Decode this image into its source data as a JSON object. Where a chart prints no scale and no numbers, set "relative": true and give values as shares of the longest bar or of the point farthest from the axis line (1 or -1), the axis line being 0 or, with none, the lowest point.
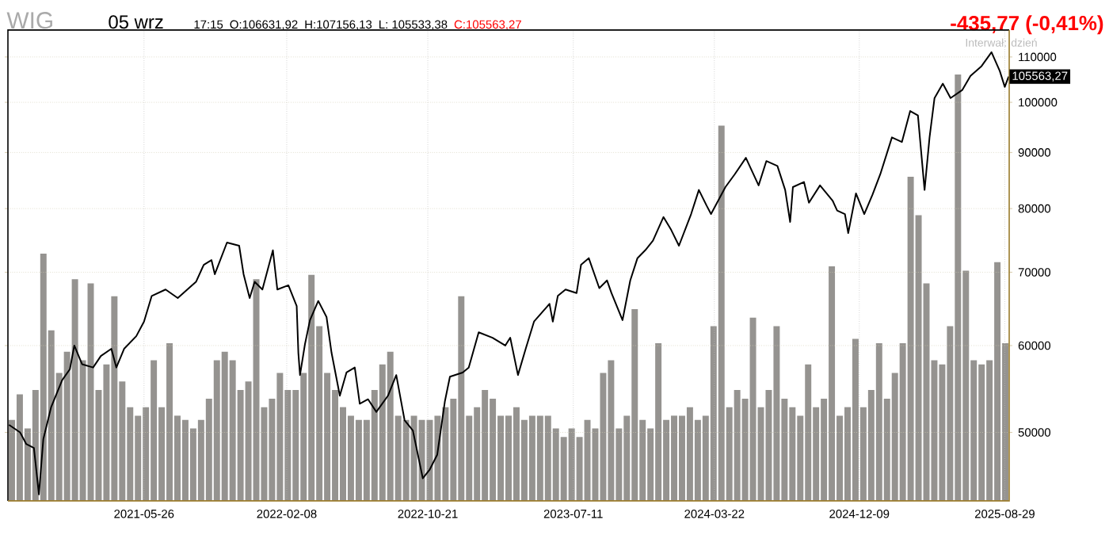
{
  "chart_data": [
    {
      "type": "line",
      "title": "WIG",
      "subtitle": "05 wrz",
      "x": [
        "2020-09-24",
        "2020-10-14",
        "2020-10-25",
        "2020-11-08",
        "2020-11-17",
        "2020-11-25",
        "2020-12-09",
        "2020-12-29",
        "2021-01-12",
        "2021-01-20",
        "2021-02-03",
        "2021-02-23",
        "2021-03-09",
        "2021-03-28",
        "2021-04-06",
        "2021-04-20",
        "2021-05-12",
        "2021-05-26",
        "2021-06-09",
        "2021-07-04",
        "2021-07-26",
        "2021-08-28",
        "2021-09-11",
        "2021-09-25",
        "2021-10-01",
        "2021-10-23",
        "2021-11-14",
        "2021-11-22",
        "2021-12-03",
        "2021-12-12",
        "2021-12-26",
        "2022-01-14",
        "2022-01-22",
        "2022-02-11",
        "2022-02-26",
        "2022-03-01",
        "2022-03-04",
        "2022-03-13",
        "2022-03-22",
        "2022-04-06",
        "2022-04-21",
        "2022-04-30",
        "2022-05-15",
        "2022-05-27",
        "2022-06-11",
        "2022-06-20",
        "2022-07-05",
        "2022-07-20",
        "2022-08-10",
        "2022-08-25",
        "2022-09-09",
        "2022-09-24",
        "2022-10-12",
        "2022-10-24",
        "2022-11-07",
        "2022-11-21",
        "2022-11-30",
        "2022-12-23",
        "2023-01-03",
        "2023-01-21",
        "2023-02-15",
        "2023-03-10",
        "2023-03-19",
        "2023-04-02",
        "2023-04-16",
        "2023-05-01",
        "2023-05-29",
        "2023-06-04",
        "2023-06-13",
        "2023-06-27",
        "2023-07-17",
        "2023-07-25",
        "2023-08-08",
        "2023-08-27",
        "2023-09-10",
        "2023-09-18",
        "2023-10-08",
        "2023-10-22",
        "2023-11-04",
        "2023-11-18",
        "2023-12-02",
        "2023-12-21",
        "2024-01-04",
        "2024-01-18",
        "2024-02-09",
        "2024-02-23",
        "2024-03-08",
        "2024-03-16",
        "2024-04-11",
        "2024-04-28",
        "2024-05-18",
        "2024-06-10",
        "2024-06-24",
        "2024-07-14",
        "2024-07-28",
        "2024-08-06",
        "2024-08-11",
        "2024-08-31",
        "2024-09-09",
        "2024-09-29",
        "2024-10-22",
        "2024-10-30",
        "2024-11-13",
        "2024-11-19",
        "2024-12-03",
        "2024-12-18",
        "2025-01-02",
        "2025-01-16",
        "2025-02-06",
        "2025-02-24",
        "2025-03-11",
        "2025-03-25",
        "2025-04-06",
        "2025-04-15",
        "2025-04-24",
        "2025-05-09",
        "2025-05-23",
        "2025-06-13",
        "2025-06-28",
        "2025-07-18",
        "2025-08-05",
        "2025-08-20",
        "2025-08-29",
        "2025-09-05"
      ],
      "values": [
        50800,
        50000,
        48800,
        48400,
        43900,
        49300,
        52700,
        55800,
        57100,
        60000,
        57700,
        57300,
        58700,
        59600,
        57300,
        59600,
        61200,
        63100,
        66600,
        67500,
        66300,
        68600,
        71100,
        71800,
        69700,
        74500,
        74000,
        69700,
        66300,
        68600,
        67500,
        73300,
        67500,
        68100,
        65200,
        59100,
        56400,
        60200,
        63300,
        65900,
        63700,
        59100,
        54000,
        56700,
        57300,
        53100,
        53600,
        52200,
        54000,
        56400,
        51300,
        50200,
        45400,
        46200,
        47700,
        53400,
        56200,
        56700,
        57300,
        61700,
        61000,
        60000,
        61000,
        56400,
        59600,
        63100,
        65500,
        63100,
        66600,
        67500,
        67000,
        71100,
        72100,
        67700,
        68800,
        67000,
        63300,
        68800,
        72100,
        73300,
        74800,
        78600,
        76500,
        74000,
        79100,
        83200,
        80500,
        79100,
        83700,
        86000,
        89000,
        84000,
        88400,
        87500,
        83200,
        77800,
        83700,
        84600,
        81000,
        84000,
        81300,
        79700,
        79100,
        76000,
        82600,
        79100,
        82400,
        86000,
        92900,
        92000,
        98200,
        97300,
        83200,
        92900,
        100900,
        104000,
        100900,
        102600,
        105700,
        107900,
        111100,
        106800,
        103300,
        105563.27
      ],
      "color": "#000000",
      "log": true,
      "grid": true,
      "xlim": [
        "2020-09-22",
        "2025-09-06"
      ],
      "xticks": [
        "2021-05-26",
        "2022-02-08",
        "2022-10-21",
        "2023-07-11",
        "2024-03-22",
        "2024-12-09",
        "2025-08-29"
      ],
      "ylim": [
        43300,
        116400
      ],
      "yticks": [
        50000,
        60000,
        70000,
        80000,
        90000,
        100000,
        110000
      ],
      "annotations": [
        "17:15",
        "O:106631,92",
        "H:107156,13",
        "L: 105533,38",
        "C:105563,27",
        "-435,77  (-0,41%)",
        "Interwał: dzień",
        {
          "text": "105563,27",
          "x": "2025-09-05",
          "y": 105563.27
        }
      ]
    },
    {
      "type": "bar",
      "relative": true,
      "color": "#959390",
      "categories": [
        null,
        null,
        null,
        null,
        null,
        null,
        null,
        null,
        null,
        null,
        null,
        null,
        null,
        null,
        null,
        null,
        null,
        null,
        null,
        null,
        null,
        null,
        null,
        null,
        null,
        null,
        null,
        null,
        null,
        null,
        null,
        null,
        null,
        null,
        null,
        null,
        null,
        null,
        null,
        null,
        null,
        null,
        null,
        null,
        null,
        null,
        null,
        null,
        null,
        null,
        null,
        null,
        null,
        null,
        null,
        null,
        null,
        null,
        null,
        null,
        null,
        null,
        null,
        null,
        null,
        null,
        null,
        null,
        null,
        null,
        null,
        null,
        null,
        null,
        null,
        null,
        null,
        null,
        null,
        null,
        null,
        null,
        null,
        null,
        null,
        null,
        null,
        null,
        null,
        null,
        null,
        null,
        null,
        null,
        null,
        null,
        null,
        null,
        null,
        null,
        null,
        null,
        null,
        null,
        null,
        null,
        null,
        null,
        null,
        null,
        null,
        null,
        null,
        null,
        null,
        null,
        null,
        null,
        null,
        null,
        null,
        null,
        null,
        null,
        null,
        null,
        null
      ],
      "values": [
        0.19,
        0.25,
        0.17,
        0.26,
        0.58,
        0.4,
        0.3,
        0.35,
        0.52,
        0.33,
        0.51,
        0.26,
        0.32,
        0.48,
        0.28,
        0.22,
        0.2,
        0.22,
        0.33,
        0.22,
        0.37,
        0.2,
        0.19,
        0.17,
        0.19,
        0.24,
        0.33,
        0.35,
        0.33,
        0.26,
        0.28,
        0.52,
        0.22,
        0.24,
        0.3,
        0.26,
        0.26,
        0.3,
        0.53,
        0.41,
        0.3,
        0.26,
        0.22,
        0.2,
        0.19,
        0.19,
        0.26,
        0.32,
        0.35,
        0.2,
        0.19,
        0.2,
        0.19,
        0.19,
        0.2,
        0.22,
        0.24,
        0.48,
        0.2,
        0.22,
        0.26,
        0.24,
        0.2,
        0.2,
        0.22,
        0.19,
        0.2,
        0.2,
        0.2,
        0.17,
        0.15,
        0.17,
        0.15,
        0.19,
        0.17,
        0.3,
        0.33,
        0.17,
        0.2,
        0.45,
        0.19,
        0.17,
        0.37,
        0.19,
        0.2,
        0.2,
        0.22,
        0.19,
        0.2,
        0.41,
        0.88,
        0.22,
        0.26,
        0.24,
        0.43,
        0.22,
        0.26,
        0.41,
        0.24,
        0.22,
        0.2,
        0.32,
        0.22,
        0.24,
        0.55,
        0.2,
        0.22,
        0.38,
        0.22,
        0.26,
        0.37,
        0.24,
        0.3,
        0.37,
        0.76,
        0.67,
        0.51,
        0.33,
        0.32,
        0.41,
        1,
        0.54,
        0.33,
        0.32,
        0.33,
        0.56,
        0.37
      ]
    }
  ]
}
